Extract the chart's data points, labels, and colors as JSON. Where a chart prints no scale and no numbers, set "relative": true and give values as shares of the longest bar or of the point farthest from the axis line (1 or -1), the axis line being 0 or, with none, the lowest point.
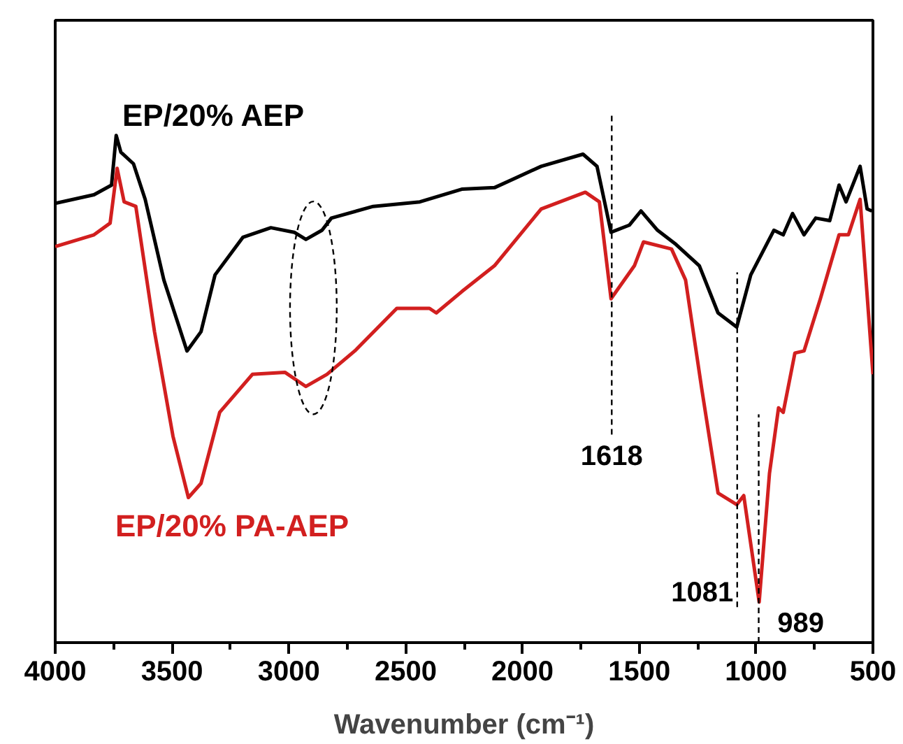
{
  "chart_data": {
    "type": "line",
    "relative": true,
    "xlabel": "Wavenumber (cm⁻¹)",
    "xlim": [
      4000,
      500
    ],
    "xticks": [
      4000,
      3500,
      3000,
      2500,
      2000,
      1500,
      1000,
      500
    ],
    "grid": false,
    "legend": false,
    "marker": "none",
    "line_style": "solid",
    "series": [
      {
        "name": "EP/20% AEP",
        "color": "#000000",
        "x": [
          4000,
          3834,
          3759,
          3739,
          3719,
          3665,
          3615,
          3535,
          3436,
          3376,
          3316,
          3197,
          3077,
          2977,
          2927,
          2858,
          2818,
          2639,
          2439,
          2260,
          2120,
          1920,
          1741,
          1681,
          1621,
          1543,
          1493,
          1422,
          1343,
          1243,
          1163,
          1083,
          1023,
          924,
          884,
          844,
          795,
          745,
          685,
          645,
          615,
          555,
          525,
          505
        ],
        "values": [
          0.866,
          0.883,
          0.902,
          1.0,
          0.967,
          0.944,
          0.874,
          0.715,
          0.575,
          0.613,
          0.725,
          0.799,
          0.818,
          0.809,
          0.795,
          0.813,
          0.837,
          0.86,
          0.869,
          0.894,
          0.897,
          0.939,
          0.963,
          0.939,
          0.809,
          0.823,
          0.851,
          0.813,
          0.785,
          0.743,
          0.65,
          0.622,
          0.725,
          0.813,
          0.804,
          0.846,
          0.804,
          0.837,
          0.832,
          0.902,
          0.869,
          0.939,
          0.855,
          0.851
        ]
      },
      {
        "name": "EP/20% PA-AEP",
        "color": "#d21f1f",
        "x": [
          4000,
          3834,
          3765,
          3735,
          3705,
          3655,
          3575,
          3496,
          3430,
          3376,
          3296,
          3156,
          3017,
          2927,
          2837,
          2718,
          2538,
          2398,
          2369,
          2260,
          2120,
          1920,
          1731,
          1671,
          1621,
          1521,
          1482,
          1362,
          1302,
          1233,
          1163,
          1083,
          1053,
          987,
          943,
          904,
          884,
          834,
          795,
          725,
          645,
          605,
          555,
          500
        ],
        "values": [
          0.781,
          0.804,
          0.827,
          0.935,
          0.869,
          0.86,
          0.613,
          0.407,
          0.286,
          0.314,
          0.454,
          0.529,
          0.533,
          0.505,
          0.529,
          0.575,
          0.659,
          0.659,
          0.65,
          0.692,
          0.743,
          0.855,
          0.888,
          0.869,
          0.678,
          0.743,
          0.79,
          0.776,
          0.715,
          0.501,
          0.295,
          0.272,
          0.29,
          0.08,
          0.333,
          0.463,
          0.454,
          0.571,
          0.575,
          0.678,
          0.804,
          0.804,
          0.874,
          0.529
        ]
      }
    ],
    "ref_lines": [
      {
        "axis": "x",
        "value": 1618,
        "label": "1618",
        "line_style": "dashed",
        "color": "#000000"
      },
      {
        "axis": "x",
        "value": 1081,
        "label": "1081",
        "line_style": "dashed",
        "color": "#000000"
      },
      {
        "axis": "x",
        "value": 989,
        "label": "989",
        "line_style": "dashed",
        "color": "#000000"
      }
    ]
  }
}
